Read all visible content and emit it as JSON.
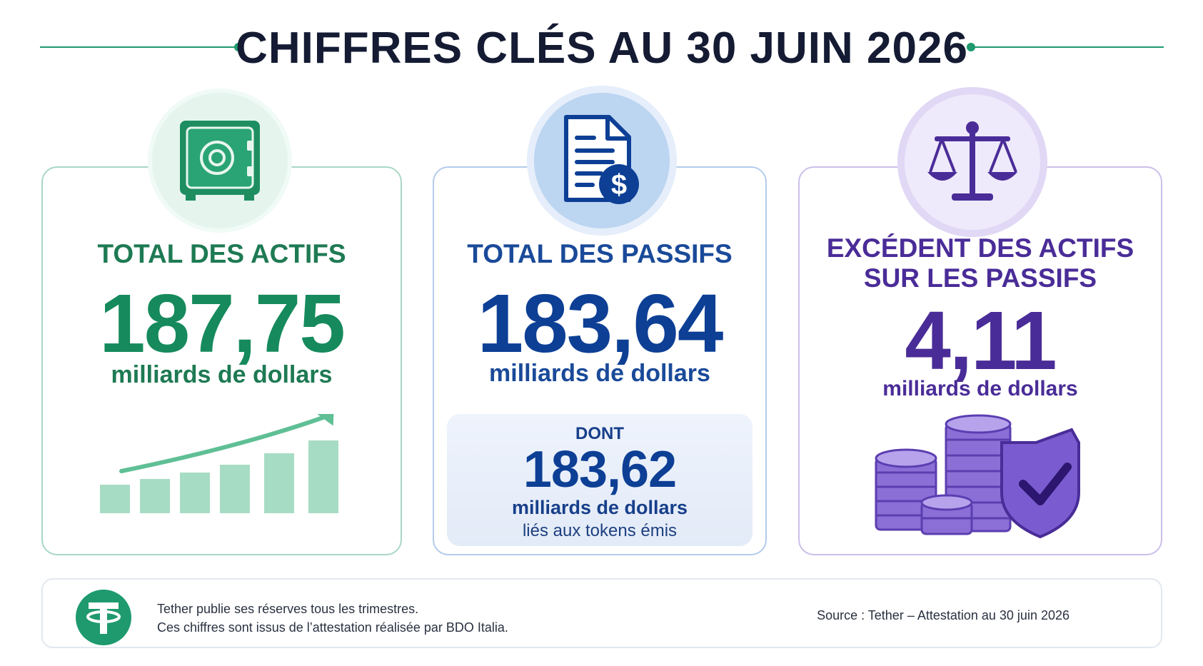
{
  "header": {
    "title": "CHIFFRES CLÉS AU 30 JUIN 2026",
    "accent_color": "#1e9a6e"
  },
  "cards": {
    "assets": {
      "icon": "safe-icon",
      "label": "TOTAL DES ACTIFS",
      "value": "187,75",
      "unit": "milliards de dollars",
      "color": "#168a5c"
    },
    "liabilities": {
      "icon": "invoice-dollar-icon",
      "label": "TOTAL DES PASSIFS",
      "value": "183,64",
      "unit": "milliards de dollars",
      "color": "#0d3f95",
      "detail": {
        "label": "DONT",
        "value": "183,62",
        "unit": "milliards de dollars",
        "note": "liés aux tokens émis"
      }
    },
    "excess": {
      "icon": "balance-scale-icon",
      "label_line1": "EXCÉDENT DES ACTIFS",
      "label_line2": "SUR LES PASSIFS",
      "value": "4,11",
      "unit": "milliards de dollars",
      "color": "#4a2c98"
    }
  },
  "footer": {
    "logo": "tether-logo-icon",
    "line1": "Tether publie ses réserves tous les trimestres.",
    "line2": "Ces chiffres sont issus de l’attestation réalisée par BDO Italia.",
    "source": "Source : Tether – Attestation au 30 juin 2026"
  }
}
